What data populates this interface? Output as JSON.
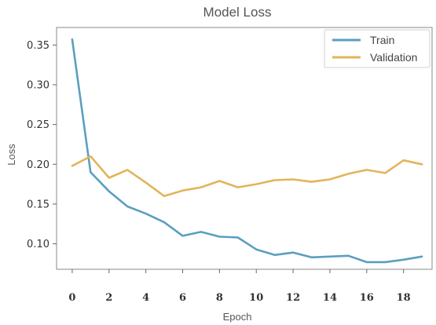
{
  "chart_data": {
    "type": "line",
    "title": "Model Loss",
    "xlabel": "Epoch",
    "ylabel": "Loss",
    "x": [
      0,
      1,
      2,
      3,
      4,
      5,
      6,
      7,
      8,
      9,
      10,
      11,
      12,
      13,
      14,
      15,
      16,
      17,
      18,
      19
    ],
    "xlim": [
      -0.85,
      19.55
    ],
    "ylim": [
      0.068,
      0.372
    ],
    "xticks": [
      "0",
      "2",
      "4",
      "6",
      "8",
      "10",
      "12",
      "14",
      "16",
      "18"
    ],
    "xtick_values": [
      0,
      2,
      4,
      6,
      8,
      10,
      12,
      14,
      16,
      18
    ],
    "yticks": [
      "0.10",
      "0.15",
      "0.20",
      "0.25",
      "0.30",
      "0.35"
    ],
    "ytick_values": [
      0.1,
      0.15,
      0.2,
      0.25,
      0.3,
      0.35
    ],
    "grid": false,
    "legend_position": "top-right",
    "series": [
      {
        "name": "Train",
        "color": "#5b9fbf",
        "values": [
          0.357,
          0.19,
          0.166,
          0.147,
          0.138,
          0.127,
          0.11,
          0.115,
          0.109,
          0.108,
          0.093,
          0.086,
          0.089,
          0.083,
          0.084,
          0.085,
          0.077,
          0.077,
          0.08,
          0.084
        ]
      },
      {
        "name": "Validation",
        "color": "#e2b55a",
        "values": [
          0.198,
          0.21,
          0.183,
          0.193,
          0.177,
          0.16,
          0.167,
          0.171,
          0.179,
          0.171,
          0.175,
          0.18,
          0.181,
          0.178,
          0.181,
          0.188,
          0.193,
          0.189,
          0.205,
          0.2
        ]
      }
    ]
  }
}
